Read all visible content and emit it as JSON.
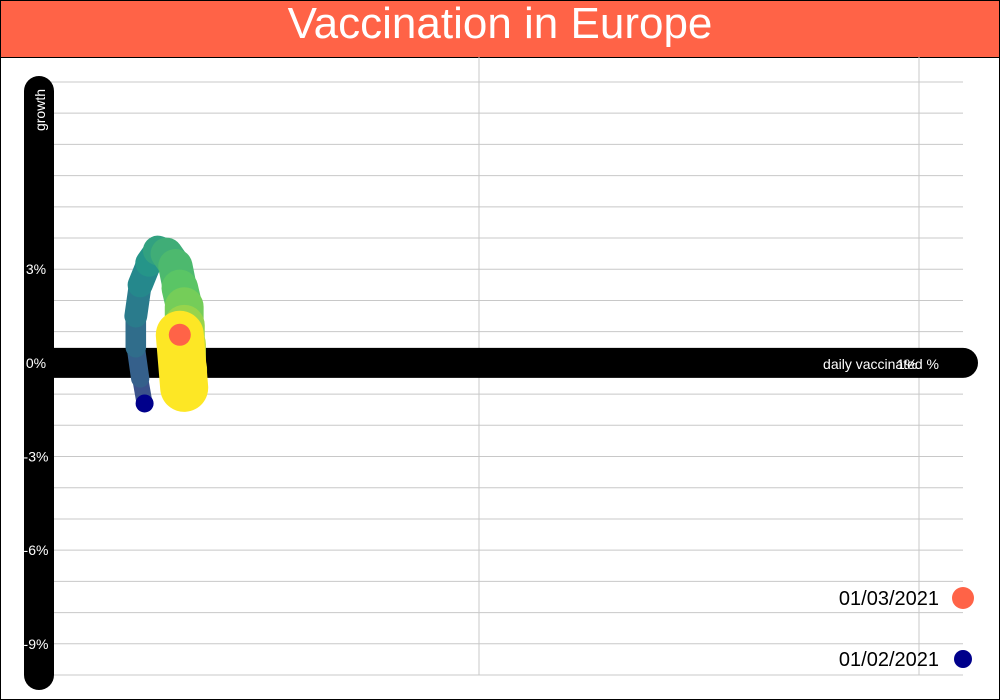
{
  "title": "Vaccination in Europe",
  "colors": {
    "title_bg": "#FF6347",
    "start_marker": "#00008B",
    "end_marker": "#FF6347",
    "axis_bar": "#000000",
    "grid": "#C8C8C8"
  },
  "chart_data": {
    "type": "line",
    "title": "Vaccination in Europe",
    "xlabel": "daily vaccinated %",
    "ylabel": "growth",
    "xlim": [
      0,
      1.05
    ],
    "ylim": [
      -10,
      9.8
    ],
    "x_ticks": [
      {
        "value": 1,
        "label": "1%"
      }
    ],
    "y_ticks": [
      {
        "value": 3,
        "label": "3%"
      },
      {
        "value": 0,
        "label": "0%"
      },
      {
        "value": -3,
        "label": "-3%"
      },
      {
        "value": -6,
        "label": "-6%"
      },
      {
        "value": -9,
        "label": "-9%"
      }
    ],
    "grid": true,
    "color_scale": "viridis",
    "series": [
      {
        "points": [
          {
            "x": 0.12,
            "y": -1.3
          },
          {
            "x": 0.115,
            "y": -0.5
          },
          {
            "x": 0.11,
            "y": 0.5
          },
          {
            "x": 0.11,
            "y": 1.5
          },
          {
            "x": 0.115,
            "y": 2.5
          },
          {
            "x": 0.125,
            "y": 3.2
          },
          {
            "x": 0.135,
            "y": 3.6
          },
          {
            "x": 0.145,
            "y": 3.5
          },
          {
            "x": 0.155,
            "y": 3.1
          },
          {
            "x": 0.16,
            "y": 2.4
          },
          {
            "x": 0.165,
            "y": 1.8
          },
          {
            "x": 0.165,
            "y": 1.2
          },
          {
            "x": 0.165,
            "y": 0.6
          },
          {
            "x": 0.165,
            "y": -0.2
          },
          {
            "x": 0.165,
            "y": -0.8
          },
          {
            "x": 0.16,
            "y": 0.9
          }
        ]
      }
    ],
    "legend": {
      "position": "bottom-right",
      "entries": [
        {
          "label": "01/03/2021",
          "color": "#FF6347"
        },
        {
          "label": "01/02/2021",
          "color": "#00008B"
        }
      ]
    }
  }
}
